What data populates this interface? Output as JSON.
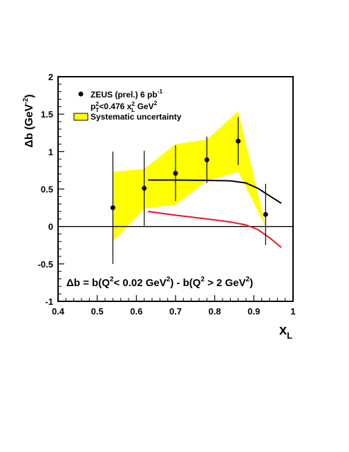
{
  "chart_data": {
    "type": "scatter",
    "xlabel": "x",
    "xlabel_sub": "L",
    "ylabel": "Δb (GeV",
    "ylabel_sup": "-2",
    "ylabel_close": ")",
    "xlim": [
      0.4,
      1.0
    ],
    "ylim": [
      -1.0,
      2.0
    ],
    "x_ticks": [
      "0.4",
      "0.5",
      "0.6",
      "0.7",
      "0.8",
      "0.9",
      "1"
    ],
    "y_ticks": [
      "-1",
      "-0.5",
      "0",
      "0.5",
      "1",
      "1.5",
      "2"
    ],
    "grid": false,
    "legend_position": "top-left",
    "legend": {
      "data_label": "ZEUS (prel.) 6 pb",
      "data_label_sup": "-1",
      "cut_label_p": "p",
      "cut_label_p_sub": "T",
      "cut_label_p_sup": "2",
      "cut_label_mid": "<0.476 x",
      "cut_label_x_sub": "L",
      "cut_label_x_sup": "2",
      "cut_label_unit": " GeV",
      "cut_label_unit_sup": "2",
      "band_label": "Systematic uncertainty"
    },
    "annotation": {
      "part1": "Δb = b(Q",
      "sup1": "2",
      "part2": "< 0.02 GeV",
      "sup2": "2",
      "part3": ") - b(Q",
      "sup3": "2",
      "part4": " > 2 GeV",
      "sup4": "2",
      "part5": ")"
    },
    "series": [
      {
        "name": "ZEUS (prel.) 6 pb-1",
        "x": [
          0.54,
          0.62,
          0.7,
          0.78,
          0.86,
          0.93
        ],
        "y": [
          0.25,
          0.51,
          0.71,
          0.89,
          1.14,
          0.16
        ],
        "yerr": [
          0.75,
          0.5,
          0.37,
          0.31,
          0.32,
          0.41
        ]
      }
    ],
    "systematic_band": {
      "x": [
        0.54,
        0.62,
        0.7,
        0.78,
        0.86,
        0.93
      ],
      "upper": [
        0.73,
        0.77,
        1.1,
        1.16,
        1.54,
        0.0
      ],
      "lower": [
        -0.2,
        0.24,
        0.29,
        0.61,
        0.73,
        0.0
      ]
    },
    "curves": [
      {
        "color": "#000000",
        "x": [
          0.63,
          0.7,
          0.78,
          0.84,
          0.88,
          0.91,
          0.94,
          0.97
        ],
        "y": [
          0.62,
          0.62,
          0.615,
          0.61,
          0.58,
          0.51,
          0.41,
          0.31
        ]
      },
      {
        "color": "#e8141c",
        "x": [
          0.63,
          0.7,
          0.78,
          0.84,
          0.88,
          0.91,
          0.94,
          0.97
        ],
        "y": [
          0.2,
          0.15,
          0.1,
          0.06,
          0.02,
          -0.04,
          -0.15,
          -0.28
        ]
      }
    ],
    "colors": {
      "band": "#ffff00",
      "band_edge": "#000000",
      "model_red": "#e8141c"
    }
  }
}
